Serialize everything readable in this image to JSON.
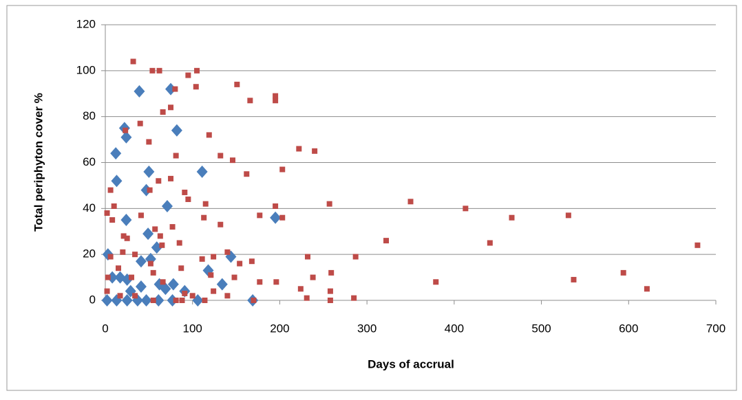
{
  "chart_data": {
    "type": "scatter",
    "x_label": "Days of accrual",
    "y_label": "Total periphyton cover %",
    "xlim": [
      0,
      700
    ],
    "xticks": [
      0,
      100,
      200,
      300,
      400,
      500,
      600,
      700
    ],
    "ylim": [
      0,
      120
    ],
    "yticks": [
      0,
      20,
      40,
      60,
      80,
      100,
      120
    ],
    "grid": true,
    "series": [
      {
        "color": "#4a7ebb",
        "marker": "diamond",
        "x": [
          3,
          39,
          75,
          22,
          24,
          82,
          12,
          13,
          50,
          47,
          111,
          71,
          49,
          24,
          59,
          52,
          41,
          195,
          144,
          118,
          134,
          8,
          17,
          25,
          41,
          62,
          78,
          91,
          2,
          13,
          25,
          37,
          47,
          61,
          77,
          106,
          169,
          69,
          29
        ],
        "values": [
          20,
          91,
          92,
          75,
          71,
          74,
          64,
          52,
          56,
          48,
          56,
          41,
          29,
          35,
          23,
          18,
          17,
          36,
          19,
          13,
          7,
          10,
          10,
          9,
          6,
          7,
          7,
          4,
          0,
          0,
          0,
          0,
          0,
          0,
          0,
          0,
          0,
          5,
          4
        ]
      },
      {
        "color": "#be4b48",
        "marker": "square",
        "x": [
          32,
          54,
          62,
          105,
          95,
          104,
          151,
          80,
          195,
          195,
          166,
          75,
          66,
          40,
          23,
          119,
          50,
          222,
          240,
          132,
          146,
          81,
          203,
          162,
          61,
          75,
          6,
          51,
          91,
          95,
          10,
          115,
          195,
          257,
          350,
          413,
          466,
          531,
          2,
          41,
          113,
          177,
          203,
          8,
          57,
          77,
          132,
          63,
          21,
          25,
          322,
          441,
          679,
          85,
          65,
          140,
          20,
          34,
          6,
          111,
          124,
          232,
          287,
          154,
          168,
          52,
          87,
          15,
          121,
          55,
          259,
          238,
          148,
          177,
          196,
          379,
          537,
          594,
          621,
          3,
          30,
          66,
          2,
          124,
          224,
          258,
          140,
          231,
          285,
          258,
          17,
          34,
          81,
          88,
          55,
          114,
          170,
          91,
          100
        ],
        "values": [
          104,
          100,
          100,
          100,
          98,
          93,
          94,
          92,
          89,
          87,
          87,
          84,
          82,
          77,
          74,
          72,
          69,
          66,
          65,
          63,
          61,
          63,
          57,
          55,
          52,
          53,
          48,
          48,
          47,
          44,
          41,
          42,
          41,
          42,
          43,
          40,
          36,
          37,
          38,
          37,
          36,
          37,
          36,
          35,
          31,
          32,
          33,
          28,
          28,
          27,
          26,
          25,
          24,
          25,
          24,
          21,
          21,
          20,
          19,
          18,
          19,
          19,
          19,
          16,
          17,
          16,
          14,
          14,
          11,
          12,
          12,
          10,
          10,
          8,
          8,
          8,
          9,
          12,
          5,
          10,
          10,
          8,
          4,
          4,
          5,
          4,
          2,
          1,
          1,
          0,
          2,
          2,
          0,
          0,
          0,
          0,
          0,
          3,
          2
        ]
      }
    ]
  }
}
